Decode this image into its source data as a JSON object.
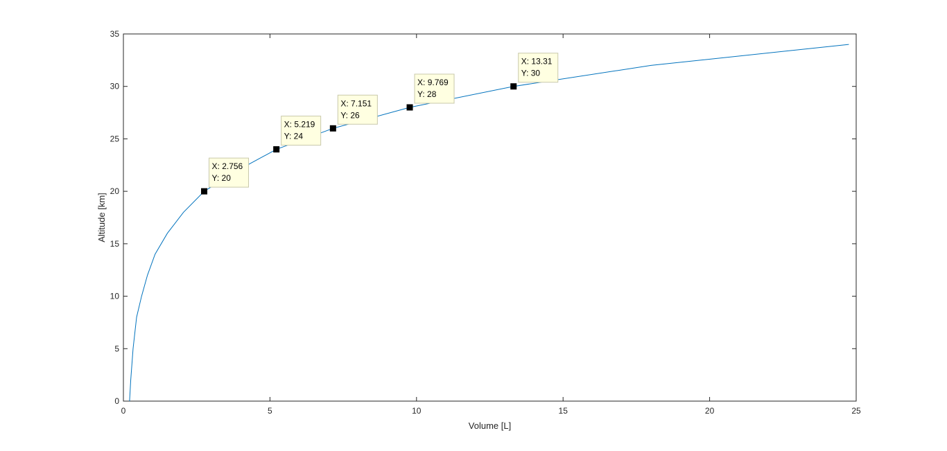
{
  "chart_data": {
    "type": "line",
    "xlabel": "Volume [L]",
    "ylabel": "Altitude [km]",
    "xlim": [
      0,
      25
    ],
    "ylim": [
      0,
      35
    ],
    "xticks": [
      0,
      5,
      10,
      15,
      20,
      25
    ],
    "yticks": [
      0,
      5,
      10,
      15,
      20,
      25,
      30,
      35
    ],
    "grid": false,
    "series": [
      {
        "color": "#0072bd",
        "x": [
          0.21,
          0.25,
          0.33,
          0.45,
          0.62,
          0.82,
          1.08,
          1.5,
          2.05,
          2.756,
          3.9,
          5.219,
          7.151,
          9.769,
          13.31,
          18.0,
          24.75
        ],
        "y": [
          0,
          2,
          5,
          8,
          10,
          12,
          14,
          16,
          18,
          20,
          22,
          24,
          26,
          28,
          30,
          32,
          34
        ]
      }
    ],
    "datatips": [
      {
        "x": 2.756,
        "y": 20,
        "x_text": "X: 2.756",
        "y_text": "Y: 20"
      },
      {
        "x": 5.219,
        "y": 24,
        "x_text": "X: 5.219",
        "y_text": "Y: 24"
      },
      {
        "x": 7.151,
        "y": 26,
        "x_text": "X: 7.151",
        "y_text": "Y: 26"
      },
      {
        "x": 9.769,
        "y": 28,
        "x_text": "X: 9.769",
        "y_text": "Y: 28"
      },
      {
        "x": 13.31,
        "y": 30,
        "x_text": "X: 13.31",
        "y_text": "Y: 30"
      }
    ],
    "colors": {
      "line": "#0072bd",
      "marker": "#000000",
      "tip_fill": "#ffffe1",
      "tip_border": "#c8c8aa",
      "axes": "#262626"
    }
  }
}
